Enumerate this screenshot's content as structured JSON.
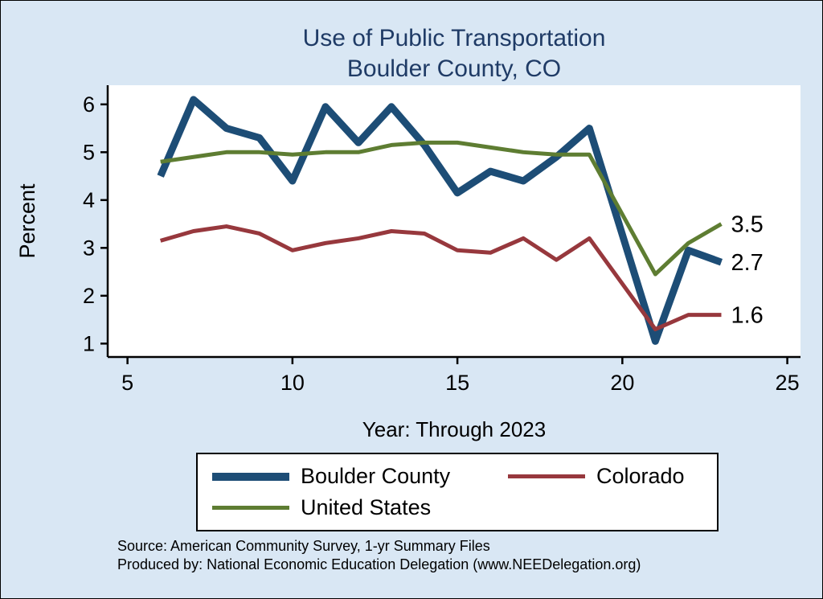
{
  "title": {
    "line1": "Use of Public Transportation",
    "line2": "Boulder County, CO"
  },
  "y_axis": {
    "label": "Percent"
  },
  "x_axis": {
    "label": "Year: Through 2023"
  },
  "legend": [
    {
      "label": "Boulder County",
      "color": "#1d4d76",
      "thickness": 10
    },
    {
      "label": "Colorado",
      "color": "#97383d",
      "thickness": 5
    },
    {
      "label": "United States",
      "color": "#5e7d32",
      "thickness": 5
    }
  ],
  "footer": {
    "source": "Source: American Community Survey, 1-yr Summary Files",
    "produced_by": "Produced by: National Economic Education Delegation (www.NEEDelegation.org)"
  },
  "colors": {
    "background": "#d9e7f4",
    "plot_background": "#ffffff",
    "title_text": "#1f3b66",
    "axis": "#000000"
  },
  "chart_data": {
    "type": "line",
    "title": "Use of Public Transportation — Boulder County, CO",
    "xlabel": "Year: Through 2023",
    "ylabel": "Percent",
    "x": [
      6,
      7,
      8,
      9,
      10,
      11,
      12,
      13,
      14,
      15,
      16,
      17,
      18,
      19,
      21,
      22,
      23
    ],
    "series": [
      {
        "name": "Boulder County",
        "color": "#1d4d76",
        "width": 9,
        "values": [
          4.5,
          6.1,
          5.5,
          5.3,
          4.4,
          5.95,
          5.2,
          5.95,
          5.15,
          4.15,
          4.6,
          4.4,
          4.9,
          5.5,
          1.05,
          2.95,
          2.7
        ],
        "end_label": "2.7"
      },
      {
        "name": "Colorado",
        "color": "#97383d",
        "width": 5,
        "values": [
          3.15,
          3.35,
          3.45,
          3.3,
          2.95,
          3.1,
          3.2,
          3.35,
          3.3,
          2.95,
          2.9,
          3.2,
          2.75,
          3.2,
          1.3,
          1.6,
          1.6
        ],
        "end_label": "1.6"
      },
      {
        "name": "United States",
        "color": "#5e7d32",
        "width": 5,
        "values": [
          4.8,
          4.9,
          5.0,
          5.0,
          4.95,
          5.0,
          5.0,
          5.15,
          5.2,
          5.2,
          5.1,
          5.0,
          4.95,
          4.95,
          2.45,
          3.1,
          3.5
        ],
        "end_label": "3.5"
      }
    ],
    "xticks": [
      5,
      10,
      15,
      20,
      25
    ],
    "yticks": [
      1,
      2,
      3,
      4,
      5,
      6
    ],
    "xlim": [
      4.4,
      25.4
    ],
    "ylim": [
      0.72,
      6.4
    ],
    "grid": false,
    "legend_position": "bottom"
  }
}
